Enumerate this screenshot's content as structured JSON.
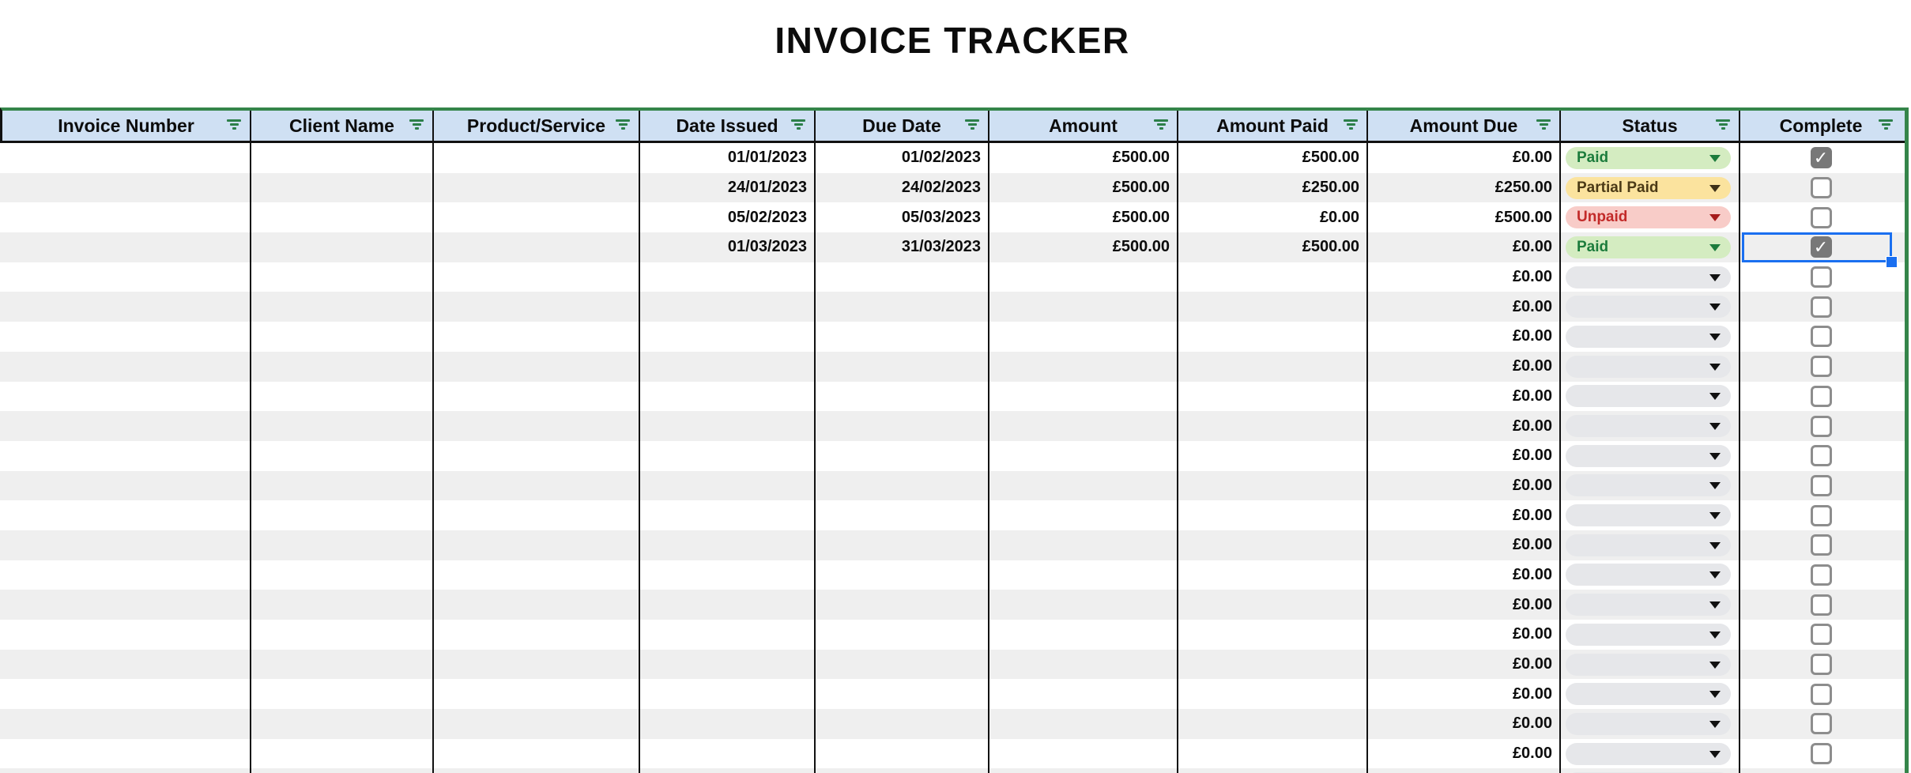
{
  "title": "INVOICE TRACKER",
  "columns": [
    {
      "id": "invoice_number",
      "label": "Invoice Number"
    },
    {
      "id": "client_name",
      "label": "Client Name"
    },
    {
      "id": "product_service",
      "label": "Product/Service"
    },
    {
      "id": "date_issued",
      "label": "Date Issued"
    },
    {
      "id": "due_date",
      "label": "Due Date"
    },
    {
      "id": "amount",
      "label": "Amount"
    },
    {
      "id": "amount_paid",
      "label": "Amount Paid"
    },
    {
      "id": "amount_due",
      "label": "Amount Due"
    },
    {
      "id": "status",
      "label": "Status"
    },
    {
      "id": "complete",
      "label": "Complete"
    }
  ],
  "status_options": {
    "paid": {
      "label": "Paid",
      "bg": "#d4ecc1",
      "text": "#1c7c3c",
      "arrow": "#1c7c3c"
    },
    "partial": {
      "label": "Partial Paid",
      "bg": "#fbe39e",
      "text": "#4b3a16",
      "arrow": "#3d3118"
    },
    "unpaid": {
      "label": "Unpaid",
      "bg": "#f8ccc8",
      "text": "#c22a29",
      "arrow": "#a61b1b"
    },
    "none": {
      "label": "",
      "bg": "#e6e7ea",
      "text": "#000000",
      "arrow": "#111111"
    }
  },
  "rows": [
    {
      "invoice_number": "",
      "client_name": "",
      "product_service": "",
      "date_issued": "01/01/2023",
      "due_date": "01/02/2023",
      "amount": "£500.00",
      "amount_paid": "£500.00",
      "amount_due": "£0.00",
      "status": "paid",
      "complete": true,
      "selected": false
    },
    {
      "invoice_number": "",
      "client_name": "",
      "product_service": "",
      "date_issued": "24/01/2023",
      "due_date": "24/02/2023",
      "amount": "£500.00",
      "amount_paid": "£250.00",
      "amount_due": "£250.00",
      "status": "partial",
      "complete": false,
      "selected": false
    },
    {
      "invoice_number": "",
      "client_name": "",
      "product_service": "",
      "date_issued": "05/02/2023",
      "due_date": "05/03/2023",
      "amount": "£500.00",
      "amount_paid": "£0.00",
      "amount_due": "£500.00",
      "status": "unpaid",
      "complete": false,
      "selected": false
    },
    {
      "invoice_number": "",
      "client_name": "",
      "product_service": "",
      "date_issued": "01/03/2023",
      "due_date": "31/03/2023",
      "amount": "£500.00",
      "amount_paid": "£500.00",
      "amount_due": "£0.00",
      "status": "paid",
      "complete": true,
      "selected": true
    },
    {
      "invoice_number": "",
      "client_name": "",
      "product_service": "",
      "date_issued": "",
      "due_date": "",
      "amount": "",
      "amount_paid": "",
      "amount_due": "£0.00",
      "status": "none",
      "complete": false,
      "selected": false
    },
    {
      "invoice_number": "",
      "client_name": "",
      "product_service": "",
      "date_issued": "",
      "due_date": "",
      "amount": "",
      "amount_paid": "",
      "amount_due": "£0.00",
      "status": "none",
      "complete": false,
      "selected": false
    },
    {
      "invoice_number": "",
      "client_name": "",
      "product_service": "",
      "date_issued": "",
      "due_date": "",
      "amount": "",
      "amount_paid": "",
      "amount_due": "£0.00",
      "status": "none",
      "complete": false,
      "selected": false
    },
    {
      "invoice_number": "",
      "client_name": "",
      "product_service": "",
      "date_issued": "",
      "due_date": "",
      "amount": "",
      "amount_paid": "",
      "amount_due": "£0.00",
      "status": "none",
      "complete": false,
      "selected": false
    },
    {
      "invoice_number": "",
      "client_name": "",
      "product_service": "",
      "date_issued": "",
      "due_date": "",
      "amount": "",
      "amount_paid": "",
      "amount_due": "£0.00",
      "status": "none",
      "complete": false,
      "selected": false
    },
    {
      "invoice_number": "",
      "client_name": "",
      "product_service": "",
      "date_issued": "",
      "due_date": "",
      "amount": "",
      "amount_paid": "",
      "amount_due": "£0.00",
      "status": "none",
      "complete": false,
      "selected": false
    },
    {
      "invoice_number": "",
      "client_name": "",
      "product_service": "",
      "date_issued": "",
      "due_date": "",
      "amount": "",
      "amount_paid": "",
      "amount_due": "£0.00",
      "status": "none",
      "complete": false,
      "selected": false
    },
    {
      "invoice_number": "",
      "client_name": "",
      "product_service": "",
      "date_issued": "",
      "due_date": "",
      "amount": "",
      "amount_paid": "",
      "amount_due": "£0.00",
      "status": "none",
      "complete": false,
      "selected": false
    },
    {
      "invoice_number": "",
      "client_name": "",
      "product_service": "",
      "date_issued": "",
      "due_date": "",
      "amount": "",
      "amount_paid": "",
      "amount_due": "£0.00",
      "status": "none",
      "complete": false,
      "selected": false
    },
    {
      "invoice_number": "",
      "client_name": "",
      "product_service": "",
      "date_issued": "",
      "due_date": "",
      "amount": "",
      "amount_paid": "",
      "amount_due": "£0.00",
      "status": "none",
      "complete": false,
      "selected": false
    },
    {
      "invoice_number": "",
      "client_name": "",
      "product_service": "",
      "date_issued": "",
      "due_date": "",
      "amount": "",
      "amount_paid": "",
      "amount_due": "£0.00",
      "status": "none",
      "complete": false,
      "selected": false
    },
    {
      "invoice_number": "",
      "client_name": "",
      "product_service": "",
      "date_issued": "",
      "due_date": "",
      "amount": "",
      "amount_paid": "",
      "amount_due": "£0.00",
      "status": "none",
      "complete": false,
      "selected": false
    },
    {
      "invoice_number": "",
      "client_name": "",
      "product_service": "",
      "date_issued": "",
      "due_date": "",
      "amount": "",
      "amount_paid": "",
      "amount_due": "£0.00",
      "status": "none",
      "complete": false,
      "selected": false
    },
    {
      "invoice_number": "",
      "client_name": "",
      "product_service": "",
      "date_issued": "",
      "due_date": "",
      "amount": "",
      "amount_paid": "",
      "amount_due": "£0.00",
      "status": "none",
      "complete": false,
      "selected": false
    },
    {
      "invoice_number": "",
      "client_name": "",
      "product_service": "",
      "date_issued": "",
      "due_date": "",
      "amount": "",
      "amount_paid": "",
      "amount_due": "£0.00",
      "status": "none",
      "complete": false,
      "selected": false
    },
    {
      "invoice_number": "",
      "client_name": "",
      "product_service": "",
      "date_issued": "",
      "due_date": "",
      "amount": "",
      "amount_paid": "",
      "amount_due": "£0.00",
      "status": "none",
      "complete": false,
      "selected": false
    },
    {
      "invoice_number": "",
      "client_name": "",
      "product_service": "",
      "date_issued": "",
      "due_date": "",
      "amount": "",
      "amount_paid": "",
      "amount_due": "£0.00",
      "status": "none",
      "complete": false,
      "selected": false
    },
    {
      "invoice_number": "",
      "client_name": "",
      "product_service": "",
      "date_issued": "",
      "due_date": "",
      "amount": "",
      "amount_paid": "",
      "amount_due": "",
      "status": "none",
      "complete": false,
      "selected": false
    }
  ],
  "selection": {
    "row_index": 4,
    "column": "complete"
  },
  "theme": {
    "header_bg": "#cfe0f3",
    "band_gray": "#efefef",
    "outer_green": "#35854a",
    "filter_icon_green": "#2c7f49",
    "grid_black": "#111111",
    "selection_blue": "#1a6ff0",
    "checkbox_border_gray": "#8d8d8d",
    "checkbox_checked_gray": "#787878"
  }
}
